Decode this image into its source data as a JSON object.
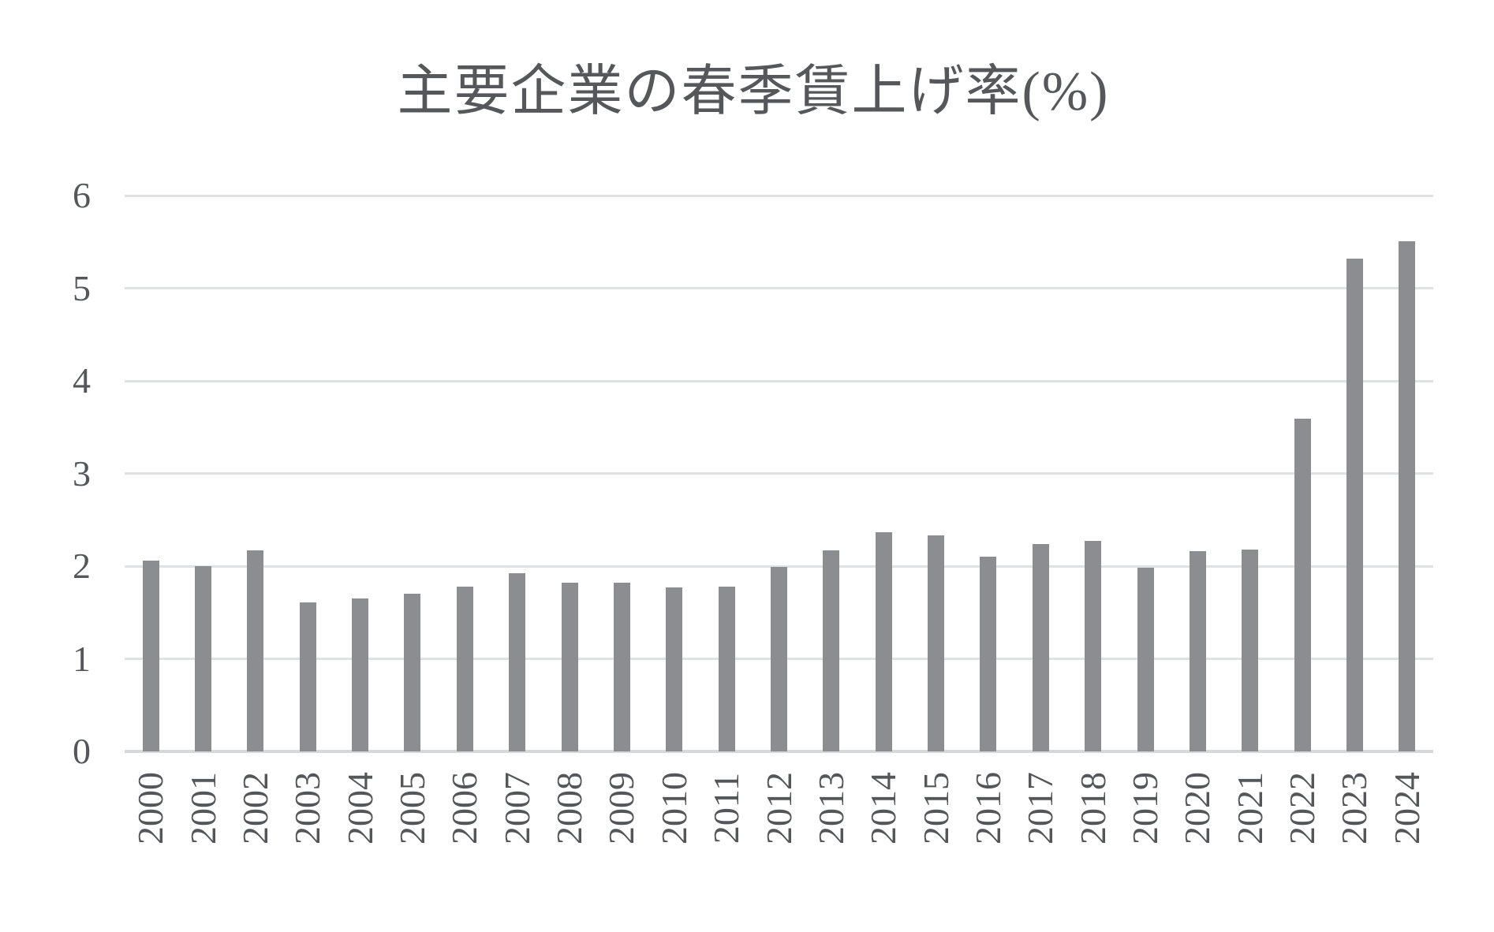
{
  "title": "主要企業の春季賃上げ率(%)",
  "colors": {
    "bar": "#8b8d90",
    "gridline": "#e0e1e3",
    "axis_line": "#d7d8da",
    "text": "#54565a",
    "background": "#ffffff"
  },
  "chart_data": {
    "type": "bar",
    "title": "主要企業の春季賃上げ率(%)",
    "xlabel": "",
    "ylabel": "",
    "categories": [
      "2000",
      "2001",
      "2002",
      "2003",
      "2004",
      "2005",
      "2006",
      "2007",
      "2008",
      "2009",
      "2010",
      "2011",
      "2012",
      "2013",
      "2014",
      "2015",
      "2016",
      "2017",
      "2018",
      "2019",
      "2020",
      "2021",
      "2022",
      "2023",
      "2024"
    ],
    "values": [
      2.06,
      2.0,
      2.17,
      1.61,
      1.65,
      1.7,
      1.78,
      1.92,
      1.82,
      1.82,
      1.77,
      1.78,
      1.99,
      2.17,
      2.37,
      2.33,
      2.1,
      2.24,
      2.27,
      1.98,
      2.16,
      2.18,
      3.59,
      5.32,
      5.51
    ],
    "ylim": [
      0,
      6
    ],
    "yticks": [
      0,
      1,
      2,
      3,
      4,
      5,
      6
    ],
    "grid": true,
    "legend": "none",
    "x_tick_rotation_degrees": 90
  }
}
